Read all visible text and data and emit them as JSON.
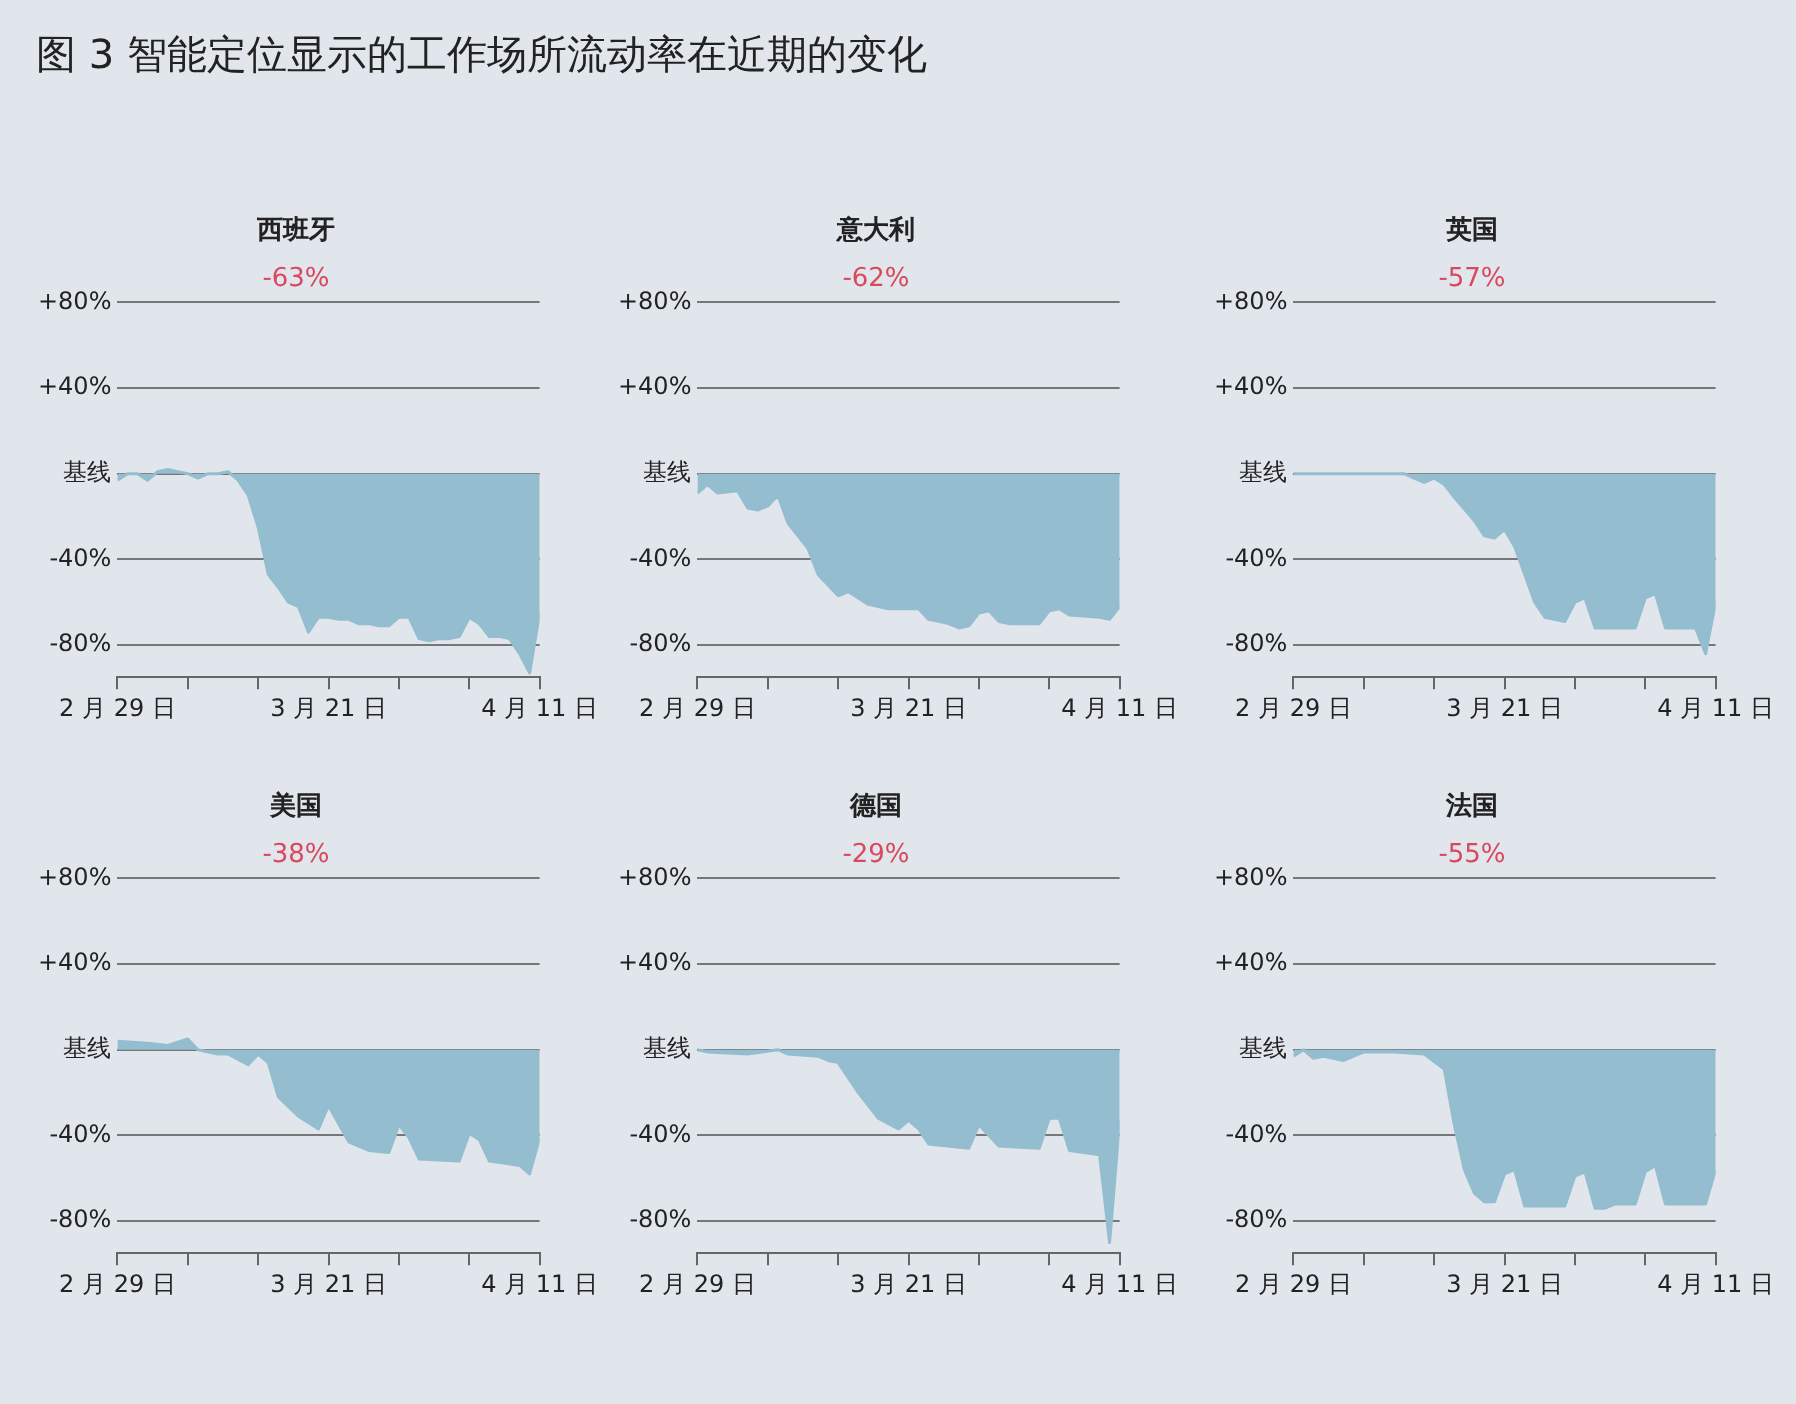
{
  "chart_data": [
    {
      "type": "area",
      "title": "西班牙",
      "subtitle": "-63%",
      "annotations": [
        "图 3  智能定位显示的工作场所流动率在近期的变化"
      ],
      "xlim": [
        "--02-29",
        "--04-11"
      ],
      "xticks": [
        {
          "value": "--02-29",
          "label": "2 月 29 日"
        },
        {
          "value": "--03-07",
          "label": null
        },
        {
          "value": "--03-14",
          "label": null
        },
        {
          "value": "--03-21",
          "label": "3 月 21 日"
        },
        {
          "value": "--03-28",
          "label": null
        },
        {
          "value": "--04-04",
          "label": null
        },
        {
          "value": "--04-11",
          "label": "4 月 11 日"
        }
      ],
      "ylim": [
        -95,
        80
      ],
      "yticks": [
        {
          "value": 80,
          "label": "+80%"
        },
        {
          "value": 40,
          "label": "+40%"
        },
        {
          "value": 0,
          "label": "基线"
        },
        {
          "value": -40,
          "label": "-40%"
        },
        {
          "value": -80,
          "label": "-80%"
        }
      ],
      "grid": "y",
      "legend": false,
      "series": [
        {
          "color": "#94bdd0",
          "x": [
            "--02-29",
            "--03-01",
            "--03-02",
            "--03-03",
            "--03-04",
            "--03-05",
            "--03-06",
            "--03-07",
            "--03-08",
            "--03-09",
            "--03-10",
            "--03-11",
            "--03-12",
            "--03-13",
            "--03-14",
            "--03-15",
            "--03-16",
            "--03-17",
            "--03-18",
            "--03-19",
            "--03-20",
            "--03-21",
            "--03-22",
            "--03-23",
            "--03-24",
            "--03-25",
            "--03-26",
            "--03-27",
            "--03-28",
            "--03-29",
            "--03-30",
            "--03-31",
            "--04-01",
            "--04-02",
            "--04-03",
            "--04-04",
            "--04-05",
            "--04-06",
            "--04-07",
            "--04-08",
            "--04-09",
            "--04-10",
            "--04-11"
          ],
          "values": [
            -3,
            0,
            0,
            -3,
            1,
            2,
            1,
            0,
            -2,
            0,
            0,
            1,
            -3,
            -10,
            -25,
            -47,
            -53,
            -60,
            -62,
            -74,
            -67,
            -67,
            -68,
            -68,
            -70,
            -70,
            -71,
            -71,
            -67,
            -67,
            -77,
            -78,
            -77,
            -77,
            -76,
            -67,
            -70,
            -76,
            -76,
            -77,
            -84,
            -93,
            -65
          ]
        }
      ]
    },
    {
      "type": "area",
      "title": "意大利",
      "subtitle": "-62%",
      "xlim": [
        "--02-29",
        "--04-11"
      ],
      "xticks": [
        {
          "value": "--02-29",
          "label": "2 月 29 日"
        },
        {
          "value": "--03-07",
          "label": null
        },
        {
          "value": "--03-14",
          "label": null
        },
        {
          "value": "--03-21",
          "label": "3 月 21 日"
        },
        {
          "value": "--03-28",
          "label": null
        },
        {
          "value": "--04-04",
          "label": null
        },
        {
          "value": "--04-11",
          "label": "4 月 11 日"
        }
      ],
      "ylim": [
        -95,
        80
      ],
      "yticks": [
        {
          "value": 80,
          "label": "+80%"
        },
        {
          "value": 40,
          "label": "+40%"
        },
        {
          "value": 0,
          "label": "基线"
        },
        {
          "value": -40,
          "label": "-40%"
        },
        {
          "value": -80,
          "label": "-80%"
        }
      ],
      "grid": "y",
      "legend": false,
      "series": [
        {
          "color": "#94bdd0",
          "x": [
            "--02-29",
            "--03-01",
            "--03-02",
            "--03-04",
            "--03-05",
            "--03-06",
            "--03-07",
            "--03-08",
            "--03-09",
            "--03-11",
            "--03-12",
            "--03-14",
            "--03-15",
            "--03-17",
            "--03-19",
            "--03-22",
            "--03-23",
            "--03-25",
            "--03-26",
            "--03-27",
            "--03-28",
            "--03-29",
            "--03-30",
            "--03-31",
            "--04-03",
            "--04-04",
            "--04-05",
            "--04-06",
            "--04-09",
            "--04-10",
            "--04-11"
          ],
          "values": [
            -9,
            -5,
            -9,
            -8,
            -16,
            -17,
            -15,
            -10,
            -23,
            -35,
            -47,
            -57,
            -55,
            -61,
            -63,
            -63,
            -68,
            -70,
            -72,
            -71,
            -65,
            -64,
            -69,
            -70,
            -70,
            -64,
            -63,
            -66,
            -67,
            -68,
            -62
          ]
        }
      ]
    },
    {
      "type": "area",
      "title": "英国",
      "subtitle": "-57%",
      "xlim": [
        "--02-29",
        "--04-11"
      ],
      "xticks": [
        {
          "value": "--02-29",
          "label": "2 月 29 日"
        },
        {
          "value": "--03-07",
          "label": null
        },
        {
          "value": "--03-14",
          "label": null
        },
        {
          "value": "--03-21",
          "label": "3 月 21 日"
        },
        {
          "value": "--03-28",
          "label": null
        },
        {
          "value": "--04-04",
          "label": null
        },
        {
          "value": "--04-11",
          "label": "4 月 11 日"
        }
      ],
      "ylim": [
        -95,
        80
      ],
      "yticks": [
        {
          "value": 80,
          "label": "+80%"
        },
        {
          "value": 40,
          "label": "+40%"
        },
        {
          "value": 0,
          "label": "基线"
        },
        {
          "value": -40,
          "label": "-40%"
        },
        {
          "value": -80,
          "label": "-80%"
        }
      ],
      "grid": "y",
      "legend": false,
      "series": [
        {
          "color": "#94bdd0",
          "x": [
            "--02-29",
            "--03-11",
            "--03-12",
            "--03-13",
            "--03-14",
            "--03-15",
            "--03-16",
            "--03-18",
            "--03-19",
            "--03-20",
            "--03-21",
            "--03-22",
            "--03-24",
            "--03-25",
            "--03-27",
            "--03-28",
            "--03-29",
            "--03-30",
            "--04-01",
            "--04-03",
            "--04-04",
            "--04-05",
            "--04-06",
            "--04-09",
            "--04-10",
            "--04-11"
          ],
          "values": [
            0,
            0,
            -2,
            -4,
            -2,
            -5,
            -11,
            -22,
            -29,
            -30,
            -26,
            -34,
            -60,
            -67,
            -69,
            -60,
            -58,
            -72,
            -72,
            -72,
            -58,
            -56,
            -72,
            -72,
            -84,
            -60
          ]
        }
      ]
    },
    {
      "type": "area",
      "title": "美国",
      "subtitle": "-38%",
      "xlim": [
        "--02-29",
        "--04-11"
      ],
      "xticks": [
        {
          "value": "--02-29",
          "label": "2 月 29 日"
        },
        {
          "value": "--03-07",
          "label": null
        },
        {
          "value": "--03-14",
          "label": null
        },
        {
          "value": "--03-21",
          "label": "3 月 21 日"
        },
        {
          "value": "--03-28",
          "label": null
        },
        {
          "value": "--04-04",
          "label": null
        },
        {
          "value": "--04-11",
          "label": "4 月 11 日"
        }
      ],
      "ylim": [
        -95,
        80
      ],
      "yticks": [
        {
          "value": 80,
          "label": "+80%"
        },
        {
          "value": 40,
          "label": "+40%"
        },
        {
          "value": 0,
          "label": "基线"
        },
        {
          "value": -40,
          "label": "-40%"
        },
        {
          "value": -80,
          "label": "-80%"
        }
      ],
      "grid": "y",
      "legend": false,
      "series": [
        {
          "color": "#94bdd0",
          "x": [
            "--02-29",
            "--03-03",
            "--03-05",
            "--03-07",
            "--03-08",
            "--03-10",
            "--03-11",
            "--03-13",
            "--03-14",
            "--03-15",
            "--03-16",
            "--03-18",
            "--03-20",
            "--03-21",
            "--03-23",
            "--03-25",
            "--03-27",
            "--03-28",
            "--03-29",
            "--03-30",
            "--04-03",
            "--04-04",
            "--04-05",
            "--04-06",
            "--04-09",
            "--04-10",
            "--04-11"
          ],
          "values": [
            4,
            3,
            2,
            5,
            0,
            -2,
            -2,
            -7,
            -2,
            -6,
            -22,
            -31,
            -37,
            -26,
            -43,
            -47,
            -48,
            -35,
            -41,
            -51,
            -52,
            -39,
            -42,
            -52,
            -54,
            -58,
            -41
          ]
        }
      ]
    },
    {
      "type": "area",
      "title": "德国",
      "subtitle": "-29%",
      "xlim": [
        "--02-29",
        "--04-11"
      ],
      "xticks": [
        {
          "value": "--02-29",
          "label": "2 月 29 日"
        },
        {
          "value": "--03-07",
          "label": null
        },
        {
          "value": "--03-14",
          "label": null
        },
        {
          "value": "--03-21",
          "label": "3 月 21 日"
        },
        {
          "value": "--03-28",
          "label": null
        },
        {
          "value": "--04-04",
          "label": null
        },
        {
          "value": "--04-11",
          "label": "4 月 11 日"
        }
      ],
      "ylim": [
        -95,
        80
      ],
      "yticks": [
        {
          "value": 80,
          "label": "+80%"
        },
        {
          "value": 40,
          "label": "+40%"
        },
        {
          "value": 0,
          "label": "基线"
        },
        {
          "value": -40,
          "label": "-40%"
        },
        {
          "value": -80,
          "label": "-80%"
        }
      ],
      "grid": "y",
      "legend": false,
      "series": [
        {
          "color": "#94bdd0",
          "x": [
            "--02-29",
            "--03-01",
            "--03-05",
            "--03-08",
            "--03-09",
            "--03-12",
            "--03-13",
            "--03-14",
            "--03-16",
            "--03-18",
            "--03-20",
            "--03-21",
            "--03-22",
            "--03-23",
            "--03-27",
            "--03-28",
            "--03-30",
            "--04-03",
            "--04-04",
            "--04-05",
            "--04-06",
            "--04-09",
            "--04-10",
            "--04-11"
          ],
          "values": [
            0,
            -1,
            -2,
            0,
            -2,
            -3,
            -5,
            -6,
            -20,
            -32,
            -37,
            -33,
            -37,
            -44,
            -46,
            -35,
            -45,
            -46,
            -32,
            -32,
            -47,
            -49,
            -90,
            -33
          ]
        }
      ]
    },
    {
      "type": "area",
      "title": "法国",
      "subtitle": "-55%",
      "xlim": [
        "--02-29",
        "--04-11"
      ],
      "xticks": [
        {
          "value": "--02-29",
          "label": "2 月 29 日"
        },
        {
          "value": "--03-07",
          "label": null
        },
        {
          "value": "--03-14",
          "label": null
        },
        {
          "value": "--03-21",
          "label": "3 月 21 日"
        },
        {
          "value": "--03-28",
          "label": null
        },
        {
          "value": "--04-04",
          "label": null
        },
        {
          "value": "--04-11",
          "label": "4 月 11 日"
        }
      ],
      "ylim": [
        -95,
        80
      ],
      "yticks": [
        {
          "value": 80,
          "label": "+80%"
        },
        {
          "value": 40,
          "label": "+40%"
        },
        {
          "value": 0,
          "label": "基线"
        },
        {
          "value": -40,
          "label": "-40%"
        },
        {
          "value": -80,
          "label": "-80%"
        }
      ],
      "grid": "y",
      "legend": false,
      "series": [
        {
          "color": "#94bdd0",
          "x": [
            "--02-29",
            "--03-01",
            "--03-02",
            "--03-03",
            "--03-05",
            "--03-06",
            "--03-07",
            "--03-10",
            "--03-13",
            "--03-15",
            "--03-16",
            "--03-17",
            "--03-18",
            "--03-19",
            "--03-20",
            "--03-21",
            "--03-22",
            "--03-23",
            "--03-24",
            "--03-27",
            "--03-28",
            "--03-29",
            "--03-30",
            "--03-31",
            "--04-01",
            "--04-03",
            "--04-04",
            "--04-05",
            "--04-06",
            "--04-08",
            "--04-10",
            "--04-11"
          ],
          "values": [
            -3,
            0,
            -4,
            -3,
            -5,
            -3,
            -1,
            -1,
            -2,
            -9,
            -35,
            -56,
            -67,
            -71,
            -71,
            -58,
            -56,
            -73,
            -73,
            -73,
            -59,
            -57,
            -74,
            -74,
            -72,
            -72,
            -57,
            -54,
            -72,
            -72,
            -72,
            -56
          ]
        }
      ]
    }
  ]
}
